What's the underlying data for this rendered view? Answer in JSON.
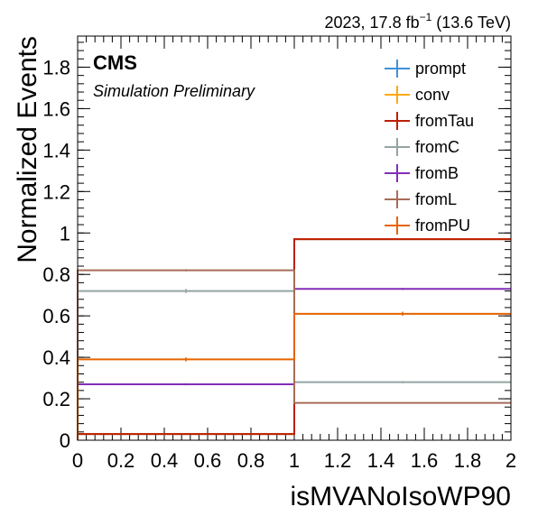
{
  "chart_data": {
    "type": "step-histogram",
    "xlabel": "isMVANoIsoWP90",
    "ylabel": "Normalized Events",
    "xlim": [
      0,
      2
    ],
    "ylim": [
      0,
      1.95
    ],
    "x_ticks": [
      "0",
      "0.2",
      "0.4",
      "0.6",
      "0.8",
      "1",
      "1.2",
      "1.4",
      "1.6",
      "1.8",
      "2"
    ],
    "y_ticks": [
      "0",
      "0.2",
      "0.4",
      "0.6",
      "0.8",
      "1",
      "1.2",
      "1.4",
      "1.6",
      "1.8"
    ],
    "bin_edges": [
      0,
      1,
      2
    ],
    "cms_label": "CMS",
    "cms_sublabel": "Simulation Preliminary",
    "lumi": {
      "prefix": "2023, 17.8 fb",
      "exponent": "−1",
      "suffix": " (13.6 TeV)"
    },
    "legend_position": "top-right",
    "series": [
      {
        "name": "prompt",
        "color": "#3f90da",
        "values": [
          0.03,
          0.97
        ],
        "errors": [
          0.003,
          0.003
        ]
      },
      {
        "name": "conv",
        "color": "#ffa90e",
        "values": [
          0.03,
          0.97
        ],
        "errors": [
          0.003,
          0.003
        ]
      },
      {
        "name": "fromTau",
        "color": "#bd1f01",
        "values": [
          0.03,
          0.97
        ],
        "errors": [
          0.003,
          0.003
        ]
      },
      {
        "name": "fromC",
        "color": "#94a4a2",
        "values": [
          0.72,
          0.28
        ],
        "errors": [
          0.01,
          0.005
        ]
      },
      {
        "name": "fromB",
        "color": "#832db6",
        "values": [
          0.27,
          0.73
        ],
        "errors": [
          0.005,
          0.005
        ]
      },
      {
        "name": "fromL",
        "color": "#a96b59",
        "values": [
          0.82,
          0.18
        ],
        "errors": [
          0.005,
          0.003
        ]
      },
      {
        "name": "fromPU",
        "color": "#e76300",
        "values": [
          0.39,
          0.61
        ],
        "errors": [
          0.01,
          0.01
        ]
      }
    ]
  }
}
